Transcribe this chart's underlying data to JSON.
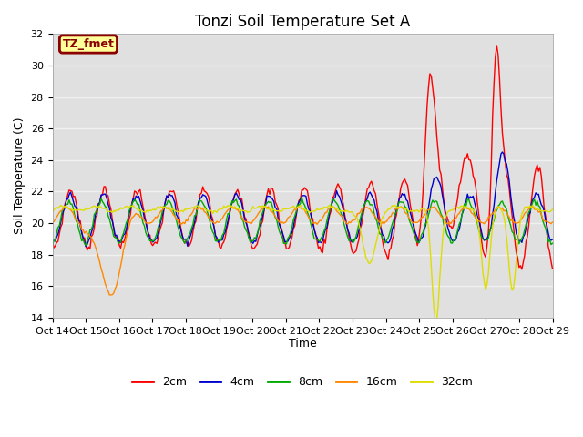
{
  "title": "Tonzi Soil Temperature Set A",
  "xlabel": "Time",
  "ylabel": "Soil Temperature (C)",
  "ylim": [
    14,
    32
  ],
  "xlim": [
    0,
    15
  ],
  "xtick_labels": [
    "Oct 14",
    "Oct 15",
    "Oct 16",
    "Oct 17",
    "Oct 18",
    "Oct 19",
    "Oct 20",
    "Oct 21",
    "Oct 22",
    "Oct 23",
    "Oct 24",
    "Oct 25",
    "Oct 26",
    "Oct 27",
    "Oct 28",
    "Oct 29"
  ],
  "ytick_values": [
    14,
    16,
    18,
    20,
    22,
    24,
    26,
    28,
    30,
    32
  ],
  "legend_label": "TZ_fmet",
  "legend_bg": "#ffff99",
  "legend_border": "#8b0000",
  "plot_bg": "#e0e0e0",
  "grid_color": "#f0f0f0",
  "line_colors": [
    "#ff0000",
    "#0000cc",
    "#00aa00",
    "#ff8800",
    "#dddd00"
  ],
  "line_labels": [
    "2cm",
    "4cm",
    "8cm",
    "16cm",
    "32cm"
  ],
  "line_width": 1.0,
  "title_fontsize": 12,
  "tick_fontsize": 8,
  "label_fontsize": 9
}
